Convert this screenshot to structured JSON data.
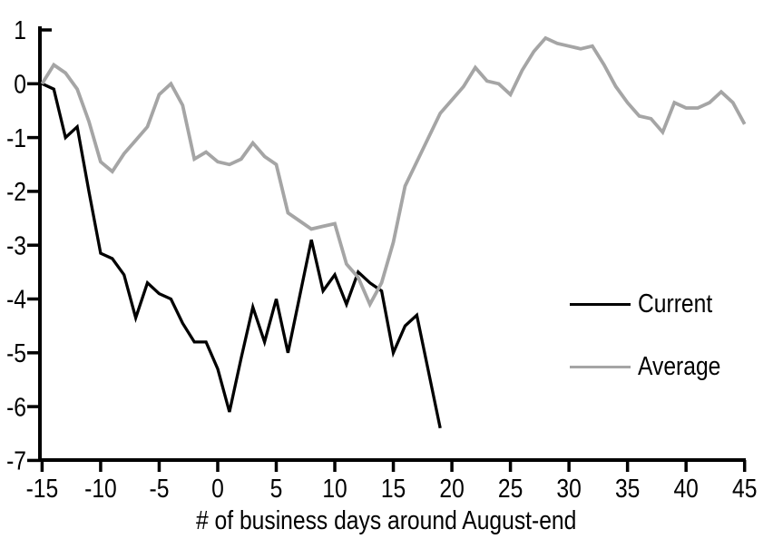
{
  "chart_data": {
    "type": "line",
    "title": "",
    "xlabel": "# of business days around August-end",
    "ylabel": "",
    "xlim": [
      -15,
      45
    ],
    "ylim": [
      -7,
      1
    ],
    "x_ticks": [
      -15,
      -10,
      -5,
      0,
      5,
      10,
      15,
      20,
      25,
      30,
      35,
      40,
      45
    ],
    "y_ticks": [
      1,
      0,
      -1,
      -2,
      -3,
      -4,
      -5,
      -6,
      -7
    ],
    "grid": false,
    "legend_position": "middle-right",
    "axis_color": "#000000",
    "series": [
      {
        "name": "Current",
        "color": "#000000",
        "x": [
          -15,
          -14,
          -13,
          -12,
          -11,
          -10,
          -9,
          -8,
          -7,
          -6,
          -5,
          -4,
          -3,
          -2,
          -1,
          0,
          1,
          2,
          3,
          4,
          5,
          6,
          7,
          8,
          9,
          10,
          11,
          12,
          13,
          14,
          15,
          16,
          17,
          18,
          19
        ],
        "values": [
          0.0,
          -0.1,
          -1.0,
          -0.8,
          -2.0,
          -3.15,
          -3.25,
          -3.55,
          -4.35,
          -3.7,
          -3.9,
          -4.0,
          -4.45,
          -4.8,
          -4.8,
          -5.3,
          -6.1,
          -5.1,
          -4.15,
          -4.8,
          -4.0,
          -5.0,
          -3.95,
          -2.9,
          -3.85,
          -3.55,
          -4.1,
          -3.5,
          -3.7,
          -3.85,
          -5.0,
          -4.5,
          -4.3,
          -5.35,
          -6.4
        ]
      },
      {
        "name": "Average",
        "color": "#a5a5a5",
        "x": [
          -15,
          -14,
          -13,
          -12,
          -11,
          -10,
          -9,
          -8,
          -7,
          -6,
          -5,
          -4,
          -3,
          -2,
          -1,
          0,
          1,
          2,
          3,
          4,
          5,
          6,
          7,
          8,
          9,
          10,
          11,
          12,
          13,
          14,
          15,
          16,
          17,
          18,
          19,
          20,
          21,
          22,
          23,
          24,
          25,
          26,
          27,
          28,
          29,
          30,
          31,
          32,
          33,
          34,
          35,
          36,
          37,
          38,
          39,
          40,
          41,
          42,
          43,
          44,
          45
        ],
        "values": [
          0.0,
          0.35,
          0.2,
          -0.1,
          -0.7,
          -1.45,
          -1.63,
          -1.3,
          -1.05,
          -0.8,
          -0.2,
          0.0,
          -0.4,
          -1.4,
          -1.27,
          -1.45,
          -1.5,
          -1.4,
          -1.1,
          -1.35,
          -1.5,
          -2.4,
          -2.55,
          -2.7,
          -2.65,
          -2.6,
          -3.35,
          -3.6,
          -4.1,
          -3.7,
          -2.95,
          -1.9,
          -1.45,
          -1.0,
          -0.55,
          -0.3,
          -0.05,
          0.3,
          0.05,
          0.0,
          -0.2,
          0.25,
          0.6,
          0.85,
          0.75,
          0.7,
          0.65,
          0.7,
          0.35,
          -0.05,
          -0.35,
          -0.6,
          -0.65,
          -0.9,
          -0.35,
          -0.45,
          -0.45,
          -0.35,
          -0.15,
          -0.35,
          -0.75
        ]
      }
    ]
  },
  "legend": {
    "items": [
      {
        "label": "Current",
        "color": "#000000",
        "line_width": 3.3
      },
      {
        "label": "Average",
        "color": "#a5a5a5",
        "line_width": 3.8
      }
    ]
  }
}
